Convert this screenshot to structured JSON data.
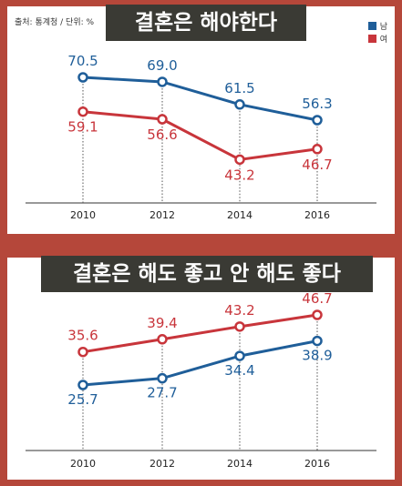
{
  "source": "출처: 통계청 / 단위: %",
  "legend": [
    {
      "name": "남",
      "color": "#1f5e99"
    },
    {
      "name": "여",
      "color": "#c8353b"
    }
  ],
  "chart_data": [
    {
      "type": "line",
      "title": "결혼은 해야한다",
      "x": [
        "2010",
        "2012",
        "2014",
        "2016"
      ],
      "series": [
        {
          "name": "남",
          "color": "#1f5e99",
          "values": [
            70.5,
            69.0,
            61.5,
            56.3
          ]
        },
        {
          "name": "여",
          "color": "#c8353b",
          "values": [
            59.1,
            56.6,
            43.2,
            46.7
          ]
        }
      ],
      "grid": false
    },
    {
      "type": "line",
      "title": "결혼은 해도 좋고 안 해도 좋다",
      "x": [
        "2010",
        "2012",
        "2014",
        "2016"
      ],
      "series": [
        {
          "name": "남",
          "color": "#1f5e99",
          "values": [
            25.7,
            27.7,
            34.4,
            38.9
          ]
        },
        {
          "name": "여",
          "color": "#c8353b",
          "values": [
            35.6,
            39.4,
            43.2,
            46.7
          ]
        }
      ],
      "grid": false
    }
  ]
}
